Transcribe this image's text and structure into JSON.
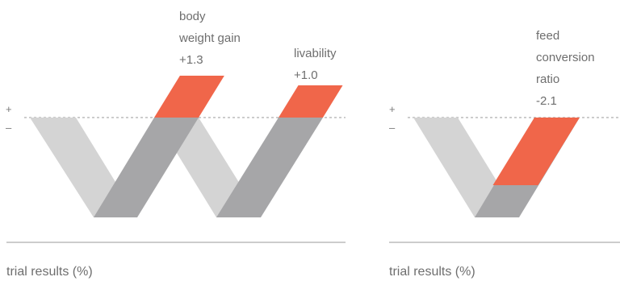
{
  "colors": {
    "light": "#d4d4d4",
    "dark": "#a6a6a8",
    "accent": "#f0664a",
    "rule": "#9a9a9a",
    "text": "#6e6e6e"
  },
  "chart_data": [
    {
      "type": "bar",
      "xlabel": "trial results (%)",
      "signs": {
        "positive": "+",
        "negative": "–"
      },
      "series": [
        {
          "lines": [
            "body",
            "weight gain"
          ],
          "value_label": "+1.3",
          "value": 1.3
        },
        {
          "lines": [
            "livability"
          ],
          "value_label": "+1.0",
          "value": 1.0
        }
      ]
    },
    {
      "type": "bar",
      "xlabel": "trial results (%)",
      "signs": {
        "positive": "+",
        "negative": "–"
      },
      "series": [
        {
          "lines": [
            "feed",
            "conversion",
            "ratio"
          ],
          "value_label": "-2.1",
          "value": -2.1
        }
      ]
    }
  ]
}
